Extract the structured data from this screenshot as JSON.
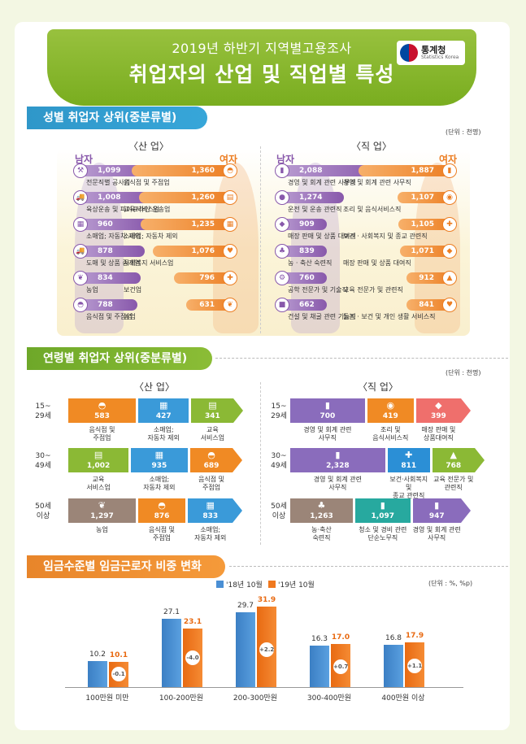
{
  "header": {
    "subtitle": "2019년 하반기 지역별고용조사",
    "title": "취업자의 산업 및 직업별 특성",
    "logo_name": "통계청",
    "logo_en": "Statistics Korea"
  },
  "colors": {
    "male": "#8858ab",
    "female": "#ec7e23",
    "green": "#8bb935",
    "orange": "#f08a24",
    "blue": "#3a9ad9",
    "purple": "#8a6cbc",
    "brown": "#9b8578",
    "teal": "#27a99f",
    "wage_2018": "#4a8fd4",
    "wage_2019": "#f0781e"
  },
  "section1": {
    "title": "성별 취업자 상위(중분류별)",
    "unit": "(단위 : 천명)",
    "industry": {
      "heading": "〈산 업〉",
      "male_label": "남자",
      "female_label": "여자",
      "male": [
        {
          "value": "1,099",
          "label": "전문직별 공사업",
          "icon": "construction-icon"
        },
        {
          "value": "1,008",
          "label": "육상운송 및 파이프라인 운송업",
          "icon": "truck-icon"
        },
        {
          "value": "960",
          "label": "소매업; 자동차 제외",
          "icon": "store-icon"
        },
        {
          "value": "878",
          "label": "도매 및 상품 중개업",
          "icon": "truck-icon"
        },
        {
          "value": "834",
          "label": "농업",
          "icon": "leaf-icon"
        },
        {
          "value": "788",
          "label": "음식점 및 주점업",
          "icon": "dish-icon"
        }
      ],
      "female": [
        {
          "value": "1,360",
          "label": "음식점 및 주점업",
          "icon": "dish-icon"
        },
        {
          "value": "1,260",
          "label": "교육서비스업",
          "icon": "book-icon"
        },
        {
          "value": "1,235",
          "label": "소매업; 자동차 제외",
          "icon": "store-icon"
        },
        {
          "value": "1,076",
          "label": "사회복지 서비스업",
          "icon": "heart-icon"
        },
        {
          "value": "796",
          "label": "보건업",
          "icon": "medical-icon"
        },
        {
          "value": "631",
          "label": "농업",
          "icon": "leaf-icon"
        }
      ]
    },
    "occupation": {
      "heading": "〈직 업〉",
      "male_label": "남자",
      "female_label": "여자",
      "male": [
        {
          "value": "2,088",
          "label": "경영 및 회계 관련 사무직",
          "icon": "office-icon"
        },
        {
          "value": "1,274",
          "label": "운전 및 운송 관련직",
          "icon": "driver-icon"
        },
        {
          "value": "909",
          "label": "매장 판매 및 상품 대여직",
          "icon": "shop-icon"
        },
        {
          "value": "839",
          "label": "농 · 축산 숙련직",
          "icon": "farmer-icon"
        },
        {
          "value": "760",
          "label": "공학 전문가 및 기술직",
          "icon": "engineer-icon"
        },
        {
          "value": "662",
          "label": "건설 및 채굴 관련 기능직",
          "icon": "worker-icon"
        }
      ],
      "female": [
        {
          "value": "1,887",
          "label": "경영 및 회계 관련 사무직",
          "icon": "office-icon"
        },
        {
          "value": "1,107",
          "label": "조리 및 음식서비스직",
          "icon": "chef-icon"
        },
        {
          "value": "1,105",
          "label": "보건 · 사회복지 및 종교 관련직",
          "icon": "nurse-icon"
        },
        {
          "value": "1,071",
          "label": "매장 판매 및 상품 대여직",
          "icon": "shop-icon"
        },
        {
          "value": "912",
          "label": "교육 전문가 및 관련직",
          "icon": "teacher-icon"
        },
        {
          "value": "841",
          "label": "돌봄 · 보건 및 개인 생활 서비스직",
          "icon": "care-icon"
        }
      ]
    }
  },
  "section2": {
    "title": "연령별 취업자 상위(중분류별)",
    "unit": "(단위 : 천명)",
    "industry_heading": "〈산 업〉",
    "occupation_heading": "〈직 업〉",
    "ages": [
      "15~\n29세",
      "30~\n49세",
      "50세\n이상"
    ],
    "industry": [
      [
        {
          "value": "583",
          "label": "음식점 및\n주점업",
          "color": "#f08a24",
          "icon": "dish-icon"
        },
        {
          "value": "427",
          "label": "소매업;\n자동차 제외",
          "color": "#3a9ad9",
          "icon": "store-icon"
        },
        {
          "value": "341",
          "label": "교육\n서비스업",
          "color": "#8bb935",
          "icon": "book-icon"
        }
      ],
      [
        {
          "value": "1,002",
          "label": "교육\n서비스업",
          "color": "#8bb935",
          "icon": "book-icon"
        },
        {
          "value": "935",
          "label": "소매업;\n자동차 제외",
          "color": "#3a9ad9",
          "icon": "store-icon"
        },
        {
          "value": "689",
          "label": "음식점 및\n주점업",
          "color": "#f08a24",
          "icon": "dish-icon"
        }
      ],
      [
        {
          "value": "1,297",
          "label": "농업",
          "color": "#9b8578",
          "icon": "leaf-icon"
        },
        {
          "value": "876",
          "label": "음식점 및\n주점업",
          "color": "#f08a24",
          "icon": "dish-icon"
        },
        {
          "value": "833",
          "label": "소매업;\n자동차 제외",
          "color": "#3a9ad9",
          "icon": "store-icon"
        }
      ]
    ],
    "occupation": [
      [
        {
          "value": "700",
          "label": "경영 및 회계 관련\n사무직",
          "color": "#8a6cbc",
          "icon": "office-icon"
        },
        {
          "value": "419",
          "label": "조리 및\n음식서비스직",
          "color": "#f08a24",
          "icon": "chef-icon"
        },
        {
          "value": "399",
          "label": "매장 판매 및\n상품대여직",
          "color": "#ef6f6c",
          "icon": "shop-icon"
        }
      ],
      [
        {
          "value": "2,328",
          "label": "경영 및 회계 관련\n사무직",
          "color": "#8a6cbc",
          "icon": "office-icon"
        },
        {
          "value": "811",
          "label": "보건·사회복지 및\n종교 관련직",
          "color": "#2b8fd6",
          "icon": "nurse-icon"
        },
        {
          "value": "768",
          "label": "교육 전문가 및\n관련직",
          "color": "#8bb935",
          "icon": "teacher-icon"
        }
      ],
      [
        {
          "value": "1,263",
          "label": "농·축산\n숙련직",
          "color": "#9b8578",
          "icon": "farmer-icon"
        },
        {
          "value": "1,097",
          "label": "청소 및 경비 관련\n단순노무직",
          "color": "#27a99f",
          "icon": "cleaner-icon"
        },
        {
          "value": "947",
          "label": "경영 및 회계 관련\n사무직",
          "color": "#8a6cbc",
          "icon": "office-icon"
        }
      ]
    ]
  },
  "section3": {
    "title": "임금수준별 임금근로자 비중 변화",
    "unit": "(단위 : %, %p)"
  },
  "chart_data": {
    "type": "bar",
    "title": "임금수준별 임금근로자 비중 변화",
    "categories": [
      "100만원 미만",
      "100-200만원",
      "200-300만원",
      "300-400만원",
      "400만원 이상"
    ],
    "series": [
      {
        "name": "'18년 10월",
        "values": [
          10.2,
          27.1,
          29.7,
          16.3,
          16.8
        ]
      },
      {
        "name": "'19년 10월",
        "values": [
          10.1,
          23.1,
          31.9,
          17.0,
          17.9
        ]
      }
    ],
    "changes": [
      "-0.1",
      "-4.0",
      "+2.2",
      "+0.7",
      "+1.1"
    ],
    "ylim": [
      0,
      35
    ],
    "legend": "top"
  }
}
